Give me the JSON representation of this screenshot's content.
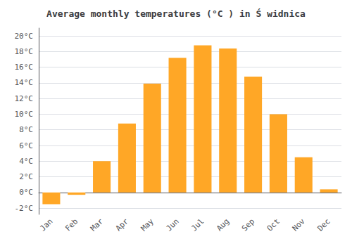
{
  "chart_data": {
    "type": "bar",
    "title": "Average monthly temperatures (°C ) in Ś widnica",
    "categories": [
      "Jan",
      "Feb",
      "Mar",
      "Apr",
      "May",
      "Jun",
      "Jul",
      "Aug",
      "Sep",
      "Oct",
      "Nov",
      "Dec"
    ],
    "values": [
      -1.5,
      -0.3,
      4.0,
      8.8,
      13.9,
      17.2,
      18.8,
      18.4,
      14.8,
      10.0,
      4.5,
      0.4
    ],
    "color": "#FFA726",
    "ylim": [
      -2.8,
      21.0
    ],
    "yticks": [
      {
        "value": -2,
        "label": "-2°C"
      },
      {
        "value": 0,
        "label": "0°C"
      },
      {
        "value": 2,
        "label": "2°C"
      },
      {
        "value": 4,
        "label": "4°C"
      },
      {
        "value": 6,
        "label": "6°C"
      },
      {
        "value": 8,
        "label": "8°C"
      },
      {
        "value": 10,
        "label": "10°C"
      },
      {
        "value": 12,
        "label": "12°C"
      },
      {
        "value": 14,
        "label": "14°C"
      },
      {
        "value": 16,
        "label": "16°C"
      },
      {
        "value": 18,
        "label": "18°C"
      },
      {
        "value": 20,
        "label": "20°C"
      }
    ],
    "grid": true
  }
}
